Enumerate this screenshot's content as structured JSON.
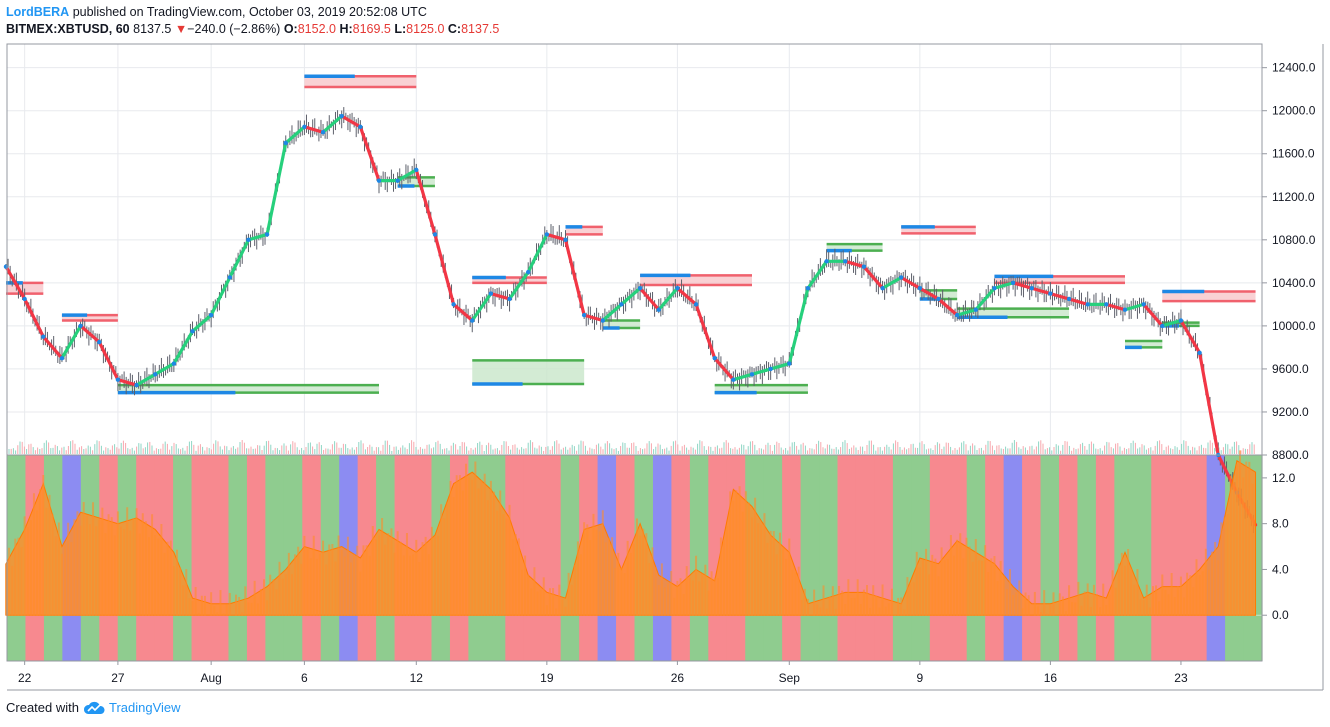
{
  "header": {
    "author": "LordBERA",
    "published_text": "published on TradingView.com, October 03, 2019 20:52:08 UTC",
    "symbol": "BITMEX:XBTUSD, 60",
    "last_price": "8137.5",
    "change_arrow": "▼",
    "change": "−240.0 (−2.86%)",
    "open_label": "O:",
    "open": "8152.0",
    "high_label": "H:",
    "high": "8169.5",
    "low_label": "L:",
    "low": "8125.0",
    "close_label": "C:",
    "close": "8137.5"
  },
  "footer": {
    "created_with": "Created with",
    "brand": "TradingView"
  },
  "colors": {
    "up": "#26d07c",
    "down": "#f23645",
    "blue": "#1e88e5",
    "green_zone": "#4caf50",
    "red_zone": "#f0616d",
    "bg_green": "#8fcc8f",
    "bg_red": "#f7898f",
    "bg_blue": "#8c8cf2",
    "osc_orange": "#ff8c2a",
    "osc_green": "#3ad63a"
  },
  "chart_data": [
    {
      "type": "line",
      "title": "",
      "series": [
        {
          "values": [
            {
              "d": "Jul 21",
              "v": 10550
            },
            {
              "d": "Jul 22",
              "v": 10250
            },
            {
              "d": "Jul 23",
              "v": 9900
            },
            {
              "d": "Jul 24",
              "v": 9700
            },
            {
              "d": "Jul 25",
              "v": 10000
            },
            {
              "d": "Jul 26",
              "v": 9850
            },
            {
              "d": "Jul 27",
              "v": 9500
            },
            {
              "d": "Jul 28",
              "v": 9450
            },
            {
              "d": "Jul 29",
              "v": 9550
            },
            {
              "d": "Jul 30",
              "v": 9650
            },
            {
              "d": "Jul 31",
              "v": 9950
            },
            {
              "d": "Aug 1",
              "v": 10100
            },
            {
              "d": "Aug 2",
              "v": 10450
            },
            {
              "d": "Aug 3",
              "v": 10800
            },
            {
              "d": "Aug 4",
              "v": 10850
            },
            {
              "d": "Aug 5",
              "v": 11700
            },
            {
              "d": "Aug 6",
              "v": 11850
            },
            {
              "d": "Aug 7",
              "v": 11800
            },
            {
              "d": "Aug 8",
              "v": 11950
            },
            {
              "d": "Aug 9",
              "v": 11850
            },
            {
              "d": "Aug 10",
              "v": 11350
            },
            {
              "d": "Aug 11",
              "v": 11350
            },
            {
              "d": "Aug 12",
              "v": 11450
            },
            {
              "d": "Aug 13",
              "v": 10850
            },
            {
              "d": "Aug 14",
              "v": 10200
            },
            {
              "d": "Aug 15",
              "v": 10050
            },
            {
              "d": "Aug 16",
              "v": 10300
            },
            {
              "d": "Aug 17",
              "v": 10250
            },
            {
              "d": "Aug 18",
              "v": 10500
            },
            {
              "d": "Aug 19",
              "v": 10850
            },
            {
              "d": "Aug 20",
              "v": 10800
            },
            {
              "d": "Aug 21",
              "v": 10100
            },
            {
              "d": "Aug 22",
              "v": 10050
            },
            {
              "d": "Aug 23",
              "v": 10200
            },
            {
              "d": "Aug 24",
              "v": 10350
            },
            {
              "d": "Aug 25",
              "v": 10150
            },
            {
              "d": "Aug 26",
              "v": 10350
            },
            {
              "d": "Aug 27",
              "v": 10200
            },
            {
              "d": "Aug 28",
              "v": 9700
            },
            {
              "d": "Aug 29",
              "v": 9500
            },
            {
              "d": "Aug 30",
              "v": 9550
            },
            {
              "d": "Aug 31",
              "v": 9600
            },
            {
              "d": "Sep 1",
              "v": 9650
            },
            {
              "d": "Sep 2",
              "v": 10350
            },
            {
              "d": "Sep 3",
              "v": 10600
            },
            {
              "d": "Sep 4",
              "v": 10600
            },
            {
              "d": "Sep 5",
              "v": 10550
            },
            {
              "d": "Sep 6",
              "v": 10350
            },
            {
              "d": "Sep 7",
              "v": 10450
            },
            {
              "d": "Sep 8",
              "v": 10350
            },
            {
              "d": "Sep 9",
              "v": 10250
            },
            {
              "d": "Sep 10",
              "v": 10100
            },
            {
              "d": "Sep 11",
              "v": 10150
            },
            {
              "d": "Sep 12",
              "v": 10350
            },
            {
              "d": "Sep 13",
              "v": 10400
            },
            {
              "d": "Sep 14",
              "v": 10350
            },
            {
              "d": "Sep 15",
              "v": 10300
            },
            {
              "d": "Sep 16",
              "v": 10250
            },
            {
              "d": "Sep 17",
              "v": 10200
            },
            {
              "d": "Sep 18",
              "v": 10200
            },
            {
              "d": "Sep 19",
              "v": 10150
            },
            {
              "d": "Sep 20",
              "v": 10200
            },
            {
              "d": "Sep 21",
              "v": 10000
            },
            {
              "d": "Sep 22",
              "v": 10050
            },
            {
              "d": "Sep 23",
              "v": 9750
            },
            {
              "d": "Sep 24",
              "v": 8800
            },
            {
              "d": "Sep 25",
              "v": 8450
            },
            {
              "d": "Sep 26",
              "v": 8150
            }
          ]
        }
      ],
      "zones": [
        {
          "from": "Jul 21",
          "to": "Jul 23",
          "low": 10300,
          "high": 10400,
          "kind": "resistance"
        },
        {
          "from": "Jul 24",
          "to": "Jul 27",
          "low": 10050,
          "high": 10100,
          "kind": "resistance"
        },
        {
          "from": "Jul 27",
          "to": "Aug 10",
          "low": 9380,
          "high": 9450,
          "kind": "support"
        },
        {
          "from": "Aug 6",
          "to": "Aug 12",
          "low": 12220,
          "high": 12320,
          "kind": "resistance"
        },
        {
          "from": "Aug 11",
          "to": "Aug 13",
          "low": 11300,
          "high": 11380,
          "kind": "support"
        },
        {
          "from": "Aug 15",
          "to": "Aug 19",
          "low": 10400,
          "high": 10450,
          "kind": "resistance"
        },
        {
          "from": "Aug 15",
          "to": "Aug 21",
          "low": 9460,
          "high": 9680,
          "kind": "support"
        },
        {
          "from": "Aug 20",
          "to": "Aug 22",
          "low": 10850,
          "high": 10920,
          "kind": "resistance"
        },
        {
          "from": "Aug 22",
          "to": "Aug 24",
          "low": 9980,
          "high": 10050,
          "kind": "support"
        },
        {
          "from": "Aug 24",
          "to": "Aug 30",
          "low": 10380,
          "high": 10470,
          "kind": "resistance"
        },
        {
          "from": "Aug 28",
          "to": "Sep 2",
          "low": 9380,
          "high": 9450,
          "kind": "support"
        },
        {
          "from": "Sep 3",
          "to": "Sep 6",
          "low": 10700,
          "high": 10760,
          "kind": "support"
        },
        {
          "from": "Sep 7",
          "to": "Sep 11",
          "low": 10860,
          "high": 10920,
          "kind": "resistance"
        },
        {
          "from": "Sep 8",
          "to": "Sep 10",
          "low": 10250,
          "high": 10330,
          "kind": "support"
        },
        {
          "from": "Sep 10",
          "to": "Sep 16",
          "low": 10080,
          "high": 10160,
          "kind": "support"
        },
        {
          "from": "Sep 12",
          "to": "Sep 19",
          "low": 10400,
          "high": 10460,
          "kind": "resistance"
        },
        {
          "from": "Sep 19",
          "to": "Sep 21",
          "low": 9800,
          "high": 9860,
          "kind": "support"
        },
        {
          "from": "Sep 21",
          "to": "Sep 26",
          "low": 10230,
          "high": 10320,
          "kind": "resistance"
        },
        {
          "from": "Sep 21",
          "to": "Sep 23",
          "low": 10000,
          "high": 10030,
          "kind": "support"
        }
      ],
      "x_tick_labels": [
        "22",
        "27",
        "Aug",
        "6",
        "12",
        "19",
        "26",
        "Sep",
        "9",
        "16",
        "23"
      ],
      "y_tick_labels": [
        "12400.0",
        "12000.0",
        "11600.0",
        "11200.0",
        "10800.0",
        "10400.0",
        "10000.0",
        "9600.0",
        "9200.0",
        "8800.0"
      ],
      "ylim": [
        8800,
        12620
      ],
      "grid": true
    },
    {
      "type": "area",
      "title": "",
      "series": [
        {
          "values": [
            {
              "d": "Jul 21",
              "v": 4.5
            },
            {
              "d": "Jul 22",
              "v": 7.5
            },
            {
              "d": "Jul 23",
              "v": 11.5
            },
            {
              "d": "Jul 24",
              "v": 6.0
            },
            {
              "d": "Jul 25",
              "v": 9.0
            },
            {
              "d": "Jul 26",
              "v": 8.5
            },
            {
              "d": "Jul 27",
              "v": 8.0
            },
            {
              "d": "Jul 28",
              "v": 8.5
            },
            {
              "d": "Jul 29",
              "v": 7.5
            },
            {
              "d": "Jul 30",
              "v": 5.5
            },
            {
              "d": "Jul 31",
              "v": 1.5
            },
            {
              "d": "Aug 1",
              "v": 1.0
            },
            {
              "d": "Aug 2",
              "v": 1.0
            },
            {
              "d": "Aug 3",
              "v": 1.5
            },
            {
              "d": "Aug 4",
              "v": 2.5
            },
            {
              "d": "Aug 5",
              "v": 4.0
            },
            {
              "d": "Aug 6",
              "v": 6.0
            },
            {
              "d": "Aug 7",
              "v": 5.5
            },
            {
              "d": "Aug 8",
              "v": 6.0
            },
            {
              "d": "Aug 9",
              "v": 5.0
            },
            {
              "d": "Aug 10",
              "v": 7.5
            },
            {
              "d": "Aug 11",
              "v": 6.5
            },
            {
              "d": "Aug 12",
              "v": 5.5
            },
            {
              "d": "Aug 13",
              "v": 7.0
            },
            {
              "d": "Aug 14",
              "v": 11.5
            },
            {
              "d": "Aug 15",
              "v": 12.5
            },
            {
              "d": "Aug 16",
              "v": 11.0
            },
            {
              "d": "Aug 17",
              "v": 8.5
            },
            {
              "d": "Aug 18",
              "v": 3.5
            },
            {
              "d": "Aug 19",
              "v": 2.0
            },
            {
              "d": "Aug 20",
              "v": 1.5
            },
            {
              "d": "Aug 21",
              "v": 7.5
            },
            {
              "d": "Aug 22",
              "v": 8.0
            },
            {
              "d": "Aug 23",
              "v": 4.0
            },
            {
              "d": "Aug 24",
              "v": 8.0
            },
            {
              "d": "Aug 25",
              "v": 3.5
            },
            {
              "d": "Aug 26",
              "v": 2.5
            },
            {
              "d": "Aug 27",
              "v": 4.0
            },
            {
              "d": "Aug 28",
              "v": 3.0
            },
            {
              "d": "Aug 29",
              "v": 11.0
            },
            {
              "d": "Aug 30",
              "v": 9.5
            },
            {
              "d": "Aug 31",
              "v": 7.0
            },
            {
              "d": "Sep 1",
              "v": 5.5
            },
            {
              "d": "Sep 2",
              "v": 1.0
            },
            {
              "d": "Sep 3",
              "v": 1.5
            },
            {
              "d": "Sep 4",
              "v": 2.0
            },
            {
              "d": "Sep 5",
              "v": 2.0
            },
            {
              "d": "Sep 6",
              "v": 1.5
            },
            {
              "d": "Sep 7",
              "v": 1.0
            },
            {
              "d": "Sep 8",
              "v": 5.0
            },
            {
              "d": "Sep 9",
              "v": 4.5
            },
            {
              "d": "Sep 10",
              "v": 6.5
            },
            {
              "d": "Sep 11",
              "v": 5.5
            },
            {
              "d": "Sep 12",
              "v": 4.5
            },
            {
              "d": "Sep 13",
              "v": 2.5
            },
            {
              "d": "Sep 14",
              "v": 1.0
            },
            {
              "d": "Sep 15",
              "v": 1.0
            },
            {
              "d": "Sep 16",
              "v": 1.5
            },
            {
              "d": "Sep 17",
              "v": 2.0
            },
            {
              "d": "Sep 18",
              "v": 1.5
            },
            {
              "d": "Sep 19",
              "v": 5.5
            },
            {
              "d": "Sep 20",
              "v": 1.5
            },
            {
              "d": "Sep 21",
              "v": 2.5
            },
            {
              "d": "Sep 22",
              "v": 2.5
            },
            {
              "d": "Sep 23",
              "v": 4.0
            },
            {
              "d": "Sep 24",
              "v": 6.0
            },
            {
              "d": "Sep 25",
              "v": 13.5
            },
            {
              "d": "Sep 26",
              "v": 12.5
            }
          ]
        }
      ],
      "background_states": [
        "green",
        "red",
        "green",
        "blue",
        "green",
        "red",
        "green",
        "red",
        "red",
        "green",
        "red",
        "red",
        "green",
        "red",
        "green",
        "green",
        "red",
        "green",
        "blue",
        "red",
        "green",
        "red",
        "red",
        "green",
        "red",
        "green",
        "green",
        "red",
        "red",
        "red",
        "green",
        "red",
        "blue",
        "red",
        "green",
        "blue",
        "red",
        "green",
        "red",
        "red",
        "green",
        "green",
        "red",
        "green",
        "green",
        "red",
        "red",
        "red",
        "green",
        "green",
        "red",
        "red",
        "green",
        "red",
        "blue",
        "red",
        "green",
        "red",
        "green",
        "red",
        "green",
        "green",
        "red",
        "red",
        "red",
        "blue",
        "green",
        "green"
      ],
      "x_tick_labels": [
        "22",
        "27",
        "Aug",
        "6",
        "12",
        "19",
        "26",
        "Sep",
        "9",
        "16",
        "23"
      ],
      "y_tick_labels": [
        "12.0",
        "8.0",
        "4.0",
        "0.0"
      ],
      "ylim": [
        -4,
        14
      ],
      "grid": true
    }
  ]
}
